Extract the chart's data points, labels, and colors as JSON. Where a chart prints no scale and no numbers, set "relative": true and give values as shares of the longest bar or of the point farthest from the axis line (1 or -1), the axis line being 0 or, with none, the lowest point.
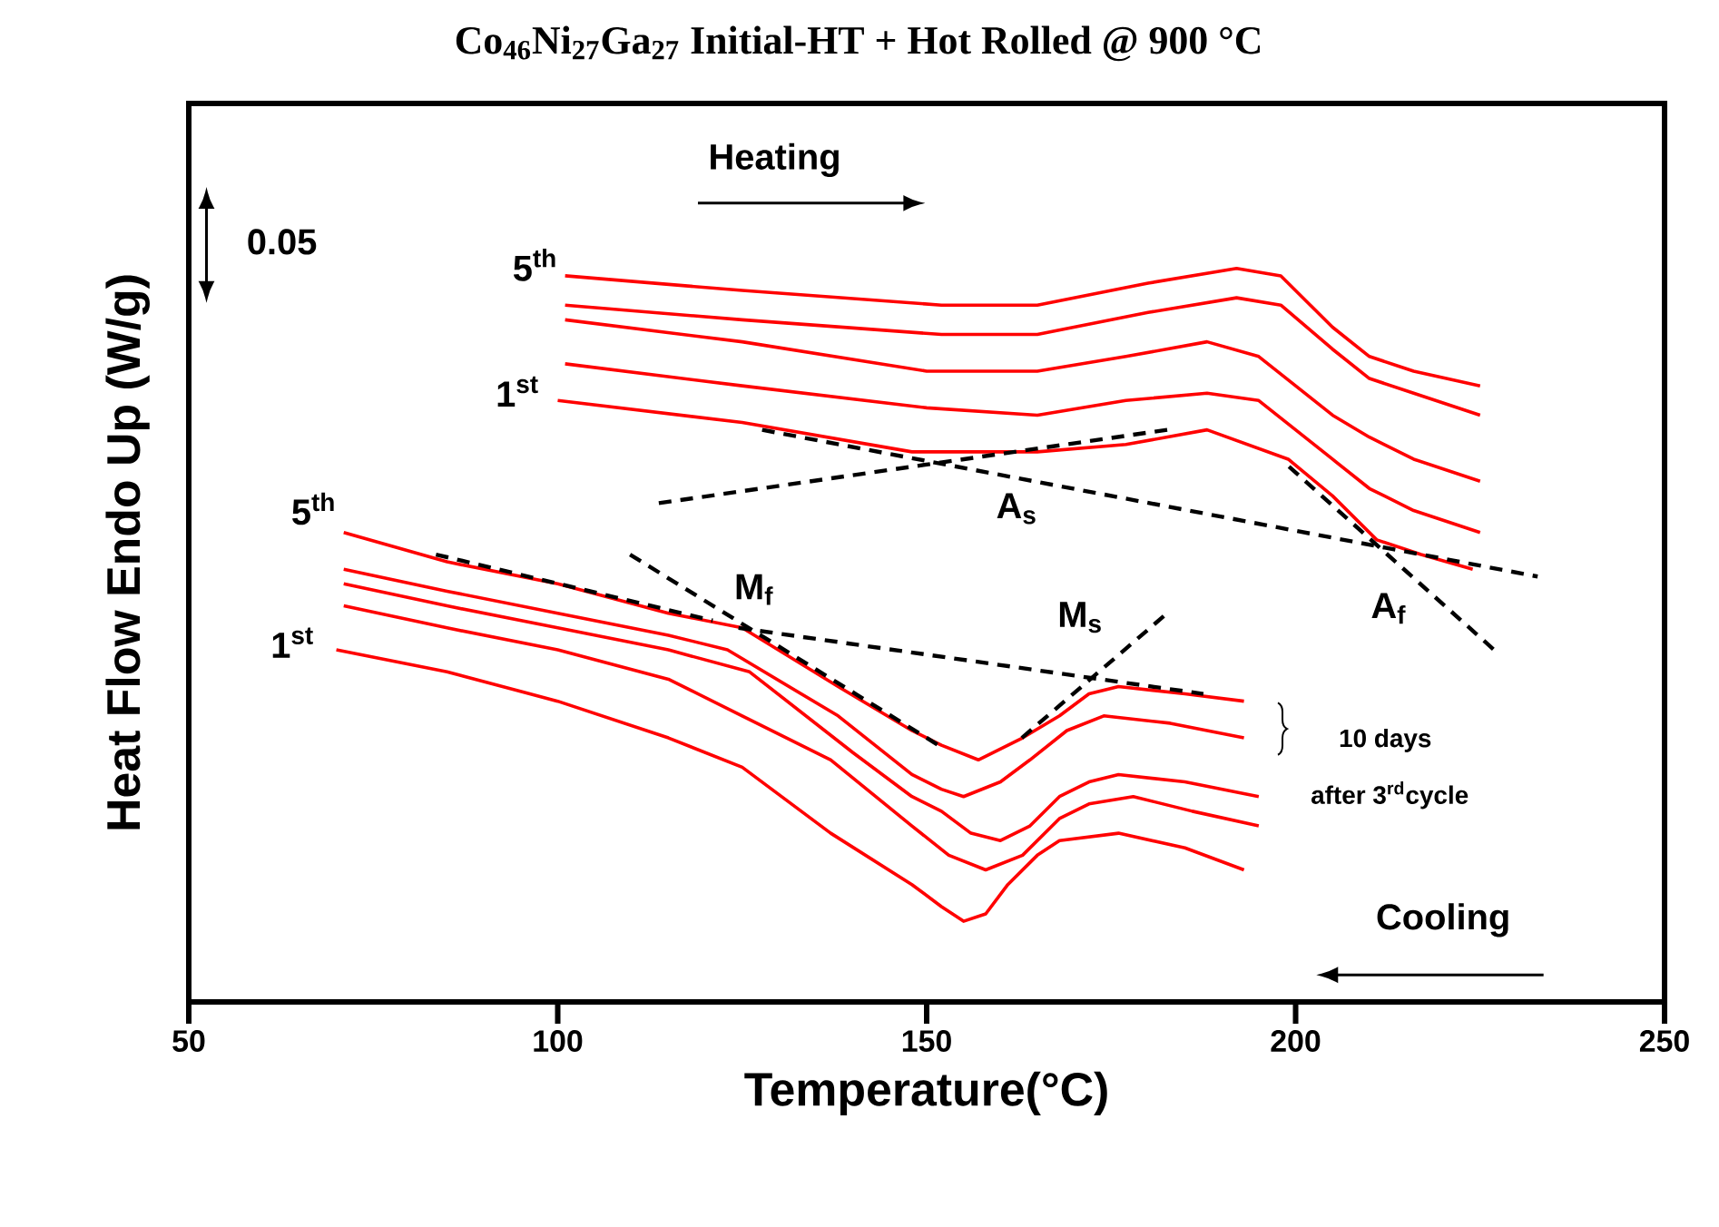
{
  "chart_data": {
    "type": "line",
    "title": "Co$_{46}$Ni$_{27}$Ga$_{27}$ Initial-HT + Hot Rolled @ 900 °C",
    "xlabel": "Temperature(°C)",
    "ylabel": "Heat Flow Endo Up (W/g)",
    "relative": true,
    "xlim": [
      50,
      250
    ],
    "xticks": [
      50,
      100,
      150,
      200,
      250
    ],
    "tick_labels": "x",
    "grid": false,
    "marker": "none",
    "line_style": "solid",
    "series": [
      {
        "color": "#ff0000",
        "x": [
          101,
          125,
          152,
          165,
          180,
          192,
          198,
          205,
          210,
          216,
          225
        ],
        "values": [
          0.99,
          0.97,
          0.95,
          0.95,
          0.98,
          1.0,
          0.99,
          0.92,
          0.88,
          0.86,
          0.84
        ]
      },
      {
        "color": "#ff0000",
        "x": [
          101,
          125,
          152,
          165,
          180,
          192,
          198,
          205,
          210,
          216,
          225
        ],
        "values": [
          0.95,
          0.93,
          0.91,
          0.91,
          0.94,
          0.96,
          0.95,
          0.89,
          0.85,
          0.83,
          0.8
        ]
      },
      {
        "color": "#ff0000",
        "x": [
          101,
          125,
          150,
          165,
          177,
          188,
          195,
          205,
          210,
          216,
          225
        ],
        "values": [
          0.93,
          0.9,
          0.86,
          0.86,
          0.88,
          0.9,
          0.88,
          0.8,
          0.77,
          0.74,
          0.71
        ]
      },
      {
        "color": "#ff0000",
        "x": [
          101,
          125,
          150,
          165,
          177,
          188,
          195,
          205,
          210,
          216,
          225
        ],
        "values": [
          0.87,
          0.84,
          0.81,
          0.8,
          0.82,
          0.83,
          0.82,
          0.74,
          0.7,
          0.67,
          0.64
        ]
      },
      {
        "color": "#ff0000",
        "x": [
          100,
          125,
          148,
          165,
          177,
          188,
          199,
          205,
          211,
          217,
          224
        ],
        "values": [
          0.82,
          0.79,
          0.75,
          0.75,
          0.76,
          0.78,
          0.74,
          0.69,
          0.63,
          0.61,
          0.59
        ]
      },
      {
        "color": "#ff0000",
        "x": [
          71,
          85,
          100,
          115,
          125,
          138,
          148,
          152,
          157,
          163,
          168,
          172,
          176,
          185,
          193
        ],
        "values": [
          0.64,
          0.6,
          0.57,
          0.53,
          0.51,
          0.43,
          0.37,
          0.35,
          0.33,
          0.36,
          0.39,
          0.42,
          0.43,
          0.42,
          0.41
        ]
      },
      {
        "color": "#ff0000",
        "x": [
          71,
          85,
          100,
          115,
          123,
          138,
          148,
          152,
          155,
          160,
          164,
          169,
          174,
          183,
          193
        ],
        "values": [
          0.59,
          0.56,
          0.53,
          0.5,
          0.48,
          0.39,
          0.31,
          0.29,
          0.28,
          0.3,
          0.33,
          0.37,
          0.39,
          0.38,
          0.36
        ]
      },
      {
        "color": "#ff0000",
        "x": [
          71,
          85,
          100,
          115,
          126,
          140,
          148,
          152,
          156,
          160,
          164,
          168,
          172,
          176,
          185,
          195
        ],
        "values": [
          0.57,
          0.54,
          0.51,
          0.48,
          0.45,
          0.34,
          0.28,
          0.26,
          0.23,
          0.22,
          0.24,
          0.28,
          0.3,
          0.31,
          0.3,
          0.28
        ]
      },
      {
        "color": "#ff0000",
        "x": [
          71,
          85,
          100,
          115,
          125,
          137,
          148,
          153,
          158,
          163,
          168,
          172,
          178,
          186,
          195
        ],
        "values": [
          0.54,
          0.51,
          0.48,
          0.44,
          0.39,
          0.33,
          0.24,
          0.2,
          0.18,
          0.2,
          0.25,
          0.27,
          0.28,
          0.26,
          0.24
        ]
      },
      {
        "color": "#ff0000",
        "x": [
          70,
          85,
          100,
          115,
          125,
          137,
          148,
          152,
          155,
          158,
          161,
          165,
          168,
          176,
          185,
          193
        ],
        "values": [
          0.48,
          0.45,
          0.41,
          0.36,
          0.32,
          0.23,
          0.16,
          0.13,
          0.11,
          0.12,
          0.16,
          0.2,
          0.22,
          0.23,
          0.21,
          0.18
        ]
      },
      {
        "color": "#000000",
        "line_style": "dashed",
        "x": [
          113.7,
          182.6
        ],
        "values": [
          0.68,
          0.78
        ]
      },
      {
        "color": "#000000",
        "line_style": "dashed",
        "x": [
          127.7,
          232.8
        ],
        "values": [
          0.78,
          0.58
        ]
      },
      {
        "color": "#000000",
        "line_style": "dashed",
        "x": [
          199.1,
          226.9
        ],
        "values": [
          0.73,
          0.48
        ]
      },
      {
        "color": "#000000",
        "line_style": "dashed",
        "x": [
          83.5,
          121
        ],
        "values": [
          0.61,
          0.52
        ]
      },
      {
        "color": "#000000",
        "line_style": "dashed",
        "x": [
          109.8,
          151.6
        ],
        "values": [
          0.61,
          0.35
        ]
      },
      {
        "color": "#000000",
        "line_style": "dashed",
        "x": [
          124.5,
          187.5
        ],
        "values": [
          0.51,
          0.42
        ]
      },
      {
        "color": "#000000",
        "line_style": "dashed",
        "x": [
          162.9,
          182.6
        ],
        "values": [
          0.36,
          0.53
        ]
      }
    ],
    "annotations": [
      {
        "text": "5$^{th}$",
        "x": 101,
        "y": 0.99
      },
      {
        "text": "1$^{st}$",
        "x": 100,
        "y": 0.82
      },
      {
        "text": "5$^{th}$",
        "x": 71,
        "y": 0.64
      },
      {
        "text": "1$^{st}$",
        "x": 70,
        "y": 0.48
      },
      "A$_{s}$",
      "A$_{f}$",
      "M$_{s}$",
      "M$_{f}$",
      "Heating",
      "Cooling",
      "0.05",
      "10 days",
      "after 3$^{rd}$cycle"
    ]
  }
}
